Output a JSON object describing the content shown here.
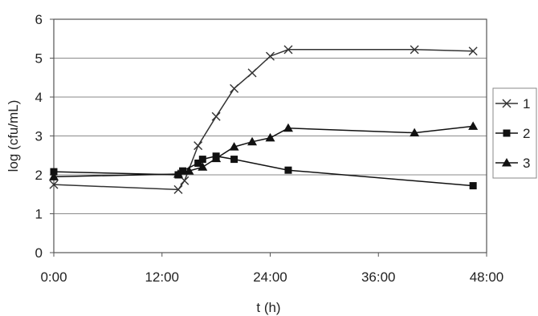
{
  "chart_data": {
    "type": "line",
    "xlabel": "t (h)",
    "ylabel": "log (cfu/mL)",
    "xlim": [
      0,
      48
    ],
    "ylim": [
      0,
      6
    ],
    "x_ticks": [
      {
        "value": 0,
        "label": "0:00"
      },
      {
        "value": 12,
        "label": "12:00"
      },
      {
        "value": 24,
        "label": "24:00"
      },
      {
        "value": 36,
        "label": "36:00"
      },
      {
        "value": 48,
        "label": "48:00"
      }
    ],
    "y_ticks": [
      0,
      1,
      2,
      3,
      4,
      5,
      6
    ],
    "grid": "horizontal",
    "legend_position": "right",
    "series": [
      {
        "name": "1",
        "marker": "x",
        "color": "#333333",
        "points": [
          [
            0,
            1.75
          ],
          [
            13.8,
            1.62
          ],
          [
            14.5,
            1.85
          ],
          [
            16.0,
            2.75
          ],
          [
            18.0,
            3.5
          ],
          [
            20.0,
            4.22
          ],
          [
            22.0,
            4.62
          ],
          [
            24.0,
            5.05
          ],
          [
            26.0,
            5.22
          ],
          [
            40.0,
            5.22
          ],
          [
            46.5,
            5.18
          ]
        ]
      },
      {
        "name": "2",
        "marker": "square",
        "color": "#111111",
        "points": [
          [
            0,
            2.08
          ],
          [
            13.8,
            2.0
          ],
          [
            14.3,
            2.1
          ],
          [
            16.0,
            2.3
          ],
          [
            16.5,
            2.4
          ],
          [
            18.0,
            2.48
          ],
          [
            20.0,
            2.4
          ],
          [
            26.0,
            2.12
          ],
          [
            46.5,
            1.72
          ]
        ]
      },
      {
        "name": "3",
        "marker": "triangle",
        "color": "#111111",
        "points": [
          [
            0,
            1.95
          ],
          [
            13.8,
            2.02
          ],
          [
            15.0,
            2.1
          ],
          [
            16.5,
            2.2
          ],
          [
            18.0,
            2.42
          ],
          [
            20.0,
            2.72
          ],
          [
            22.0,
            2.85
          ],
          [
            24.0,
            2.95
          ],
          [
            26.0,
            3.2
          ],
          [
            40.0,
            3.08
          ],
          [
            46.5,
            3.25
          ]
        ]
      }
    ]
  }
}
